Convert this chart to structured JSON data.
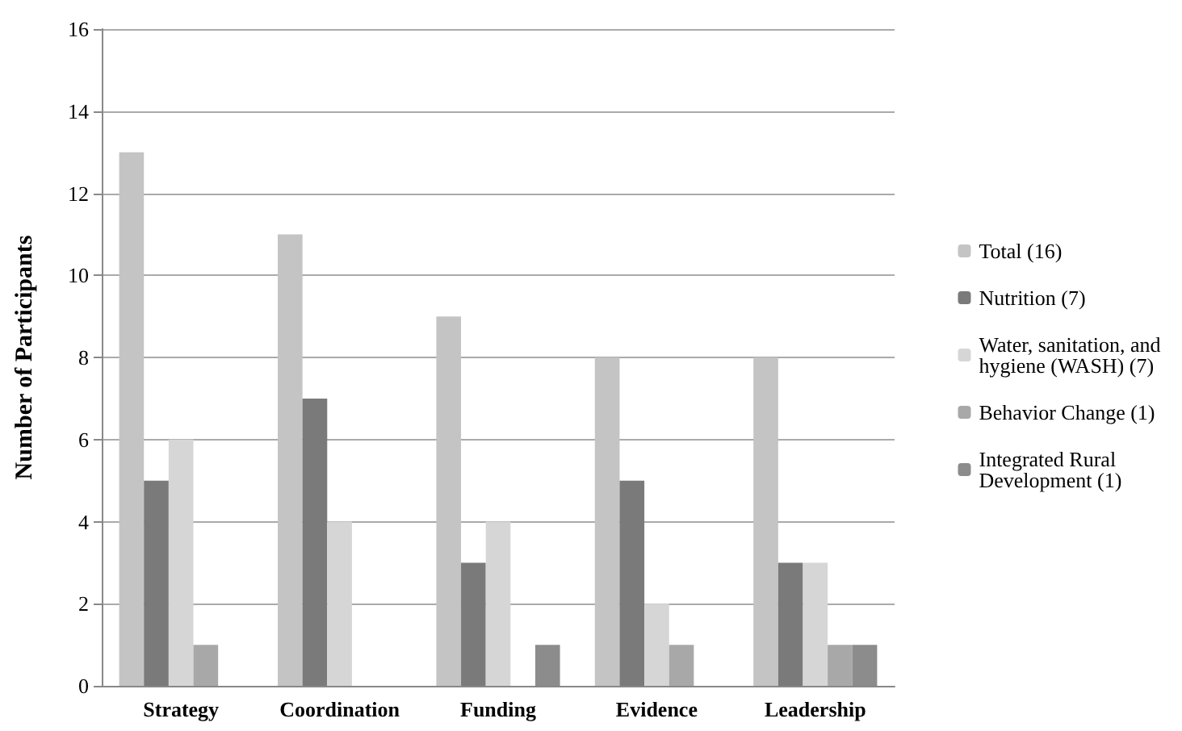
{
  "chart_data": {
    "type": "bar",
    "ylabel": "Number of Participants",
    "categories": [
      "Strategy",
      "Coordination",
      "Funding",
      "Evidence",
      "Leadership"
    ],
    "series": [
      {
        "name": "Total (16)",
        "color": "#c4c4c4",
        "values": [
          13,
          11,
          9,
          8,
          8
        ]
      },
      {
        "name": "Nutrition (7)",
        "color": "#7a7a7a",
        "values": [
          5,
          7,
          3,
          5,
          3
        ]
      },
      {
        "name": "Water, sanitation, and hygiene (WASH) (7)",
        "color": "#d6d6d6",
        "values": [
          6,
          4,
          4,
          2,
          3
        ]
      },
      {
        "name": "Behavior Change (1)",
        "color": "#a8a8a8",
        "values": [
          1,
          0,
          0,
          1,
          1
        ]
      },
      {
        "name": "Integrated Rural Development (1)",
        "color": "#8c8c8c",
        "values": [
          0,
          0,
          1,
          0,
          1
        ]
      }
    ],
    "ylim": [
      0,
      16
    ],
    "yticks": [
      0,
      2,
      4,
      6,
      8,
      10,
      12,
      14,
      16
    ],
    "grid": "y",
    "legend": "right"
  }
}
